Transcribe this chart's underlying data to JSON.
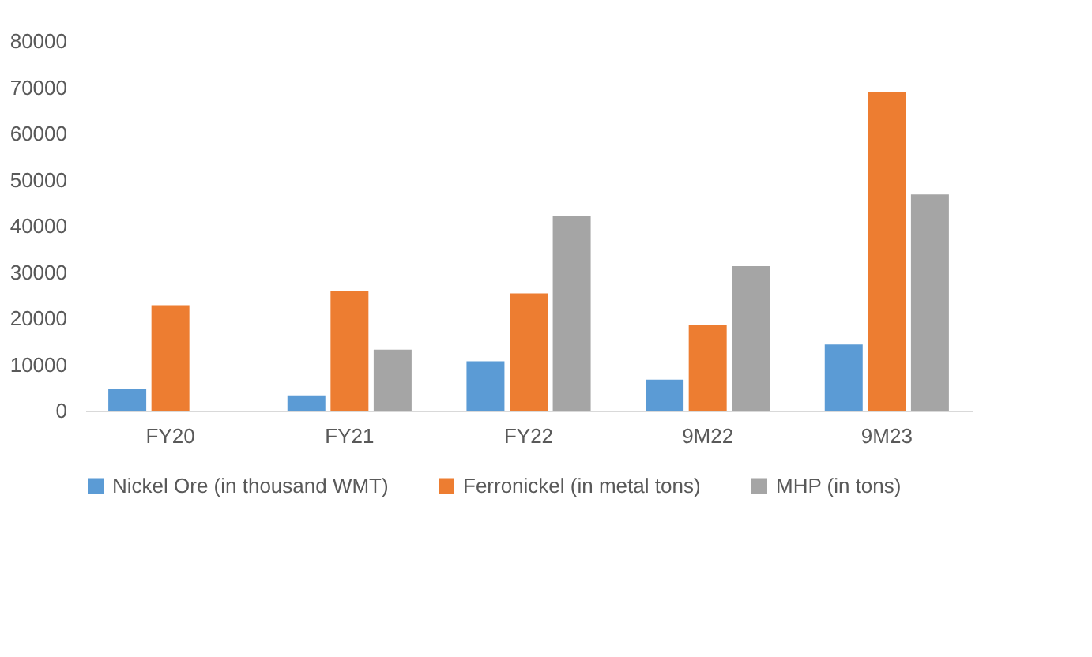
{
  "chart_data": {
    "type": "bar",
    "categories": [
      "FY20",
      "FY21",
      "FY22",
      "9M22",
      "9M23"
    ],
    "series": [
      {
        "name": "Nickel Ore (in thousand WMT)",
        "color": "#5b9bd5",
        "values": [
          4700,
          3300,
          10700,
          6700,
          14300
        ]
      },
      {
        "name": "Ferronickel (in metal tons)",
        "color": "#ed7d31",
        "values": [
          22800,
          26000,
          25400,
          18600,
          69000
        ]
      },
      {
        "name": "MHP (in tons)",
        "color": "#a5a5a5",
        "values": [
          null,
          13200,
          42200,
          31300,
          46800
        ]
      }
    ],
    "ylim": [
      0,
      80000
    ],
    "yticks": [
      0,
      10000,
      20000,
      30000,
      40000,
      50000,
      60000,
      70000,
      80000
    ],
    "grid": false,
    "legend": "bottom"
  }
}
